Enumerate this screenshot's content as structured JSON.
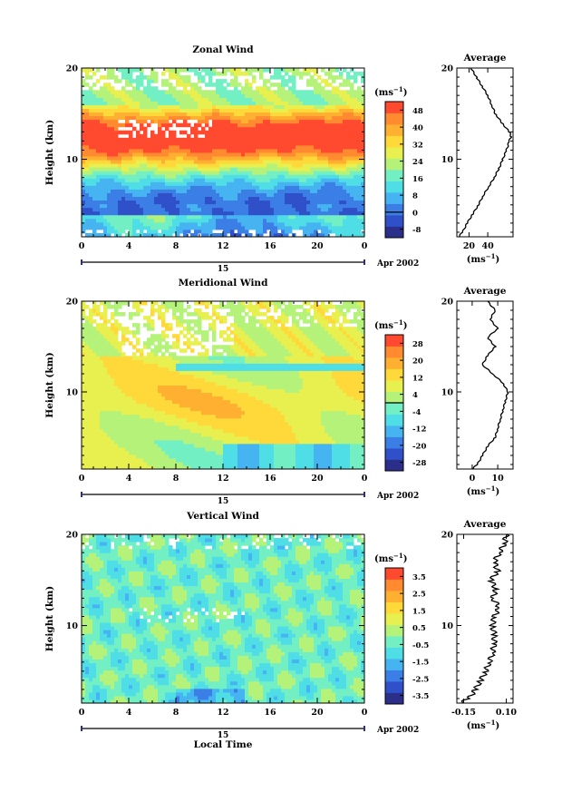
{
  "chart_data": [
    {
      "type": "heatmap",
      "title": "Zonal Wind",
      "ylabel": "Height (km)",
      "xlabel": "",
      "x_ticks": [
        "0",
        "4",
        "8",
        "12",
        "16",
        "20",
        "0"
      ],
      "y_ticks": [
        "10",
        "20"
      ],
      "xlim": [
        0,
        24
      ],
      "ylim": [
        1.5,
        20
      ],
      "date_day": "15",
      "date_month": "Apr 2002",
      "colorbar": {
        "unit": "(ms",
        "unit_exp": "−1",
        "unit_close": ")",
        "ticks": [
          "48",
          "40",
          "32",
          "24",
          "16",
          "8",
          "0",
          "-8"
        ],
        "range": [
          -12,
          52
        ],
        "zero_line": 0
      },
      "profile": {
        "title": "Average",
        "xlabel": "(ms",
        "xlabel_exp": "−1",
        "xlabel_close": ")",
        "x_ticks": [
          "20",
          "40"
        ],
        "y_ticks": [
          "10",
          "20"
        ],
        "xlim": [
          7,
          67
        ],
        "height": [
          1.5,
          2,
          3,
          4,
          5,
          6,
          7,
          8,
          9,
          10,
          11,
          12,
          12.5,
          13,
          14,
          15,
          16,
          17,
          18,
          19,
          20
        ],
        "value": [
          9,
          13,
          18,
          24,
          30,
          35,
          41,
          47,
          52,
          56,
          60,
          63,
          65,
          63,
          55,
          48,
          44,
          40,
          34,
          28,
          22
        ]
      }
    },
    {
      "type": "heatmap",
      "title": "Meridional Wind",
      "ylabel": "Height (km)",
      "xlabel": "",
      "x_ticks": [
        "0",
        "4",
        "8",
        "12",
        "16",
        "20",
        "0"
      ],
      "y_ticks": [
        "10",
        "20"
      ],
      "xlim": [
        0,
        24
      ],
      "ylim": [
        1.5,
        20
      ],
      "date_day": "15",
      "date_month": "Apr 2002",
      "colorbar": {
        "unit": "(ms",
        "unit_exp": "−1",
        "unit_close": ")",
        "ticks": [
          "28",
          "20",
          "12",
          "4",
          "-4",
          "-12",
          "-20",
          "-28"
        ],
        "range": [
          -32,
          32
        ],
        "zero_line": 0
      },
      "profile": {
        "title": "Average",
        "xlabel": "(ms",
        "xlabel_exp": "−1",
        "xlabel_close": ")",
        "x_ticks": [
          "0",
          "10"
        ],
        "y_ticks": [
          "10",
          "20"
        ],
        "xlim": [
          -6,
          16
        ],
        "height": [
          1.5,
          2,
          3,
          4,
          5,
          6,
          7,
          8,
          9,
          10,
          11,
          12,
          13,
          14,
          15,
          16,
          17,
          18,
          19,
          20
        ],
        "value": [
          0,
          2,
          4,
          6,
          9,
          10,
          11,
          12,
          13,
          14,
          12,
          8,
          4,
          6,
          9,
          6,
          10,
          7,
          9,
          6
        ]
      }
    },
    {
      "type": "heatmap",
      "title": "Vertical Wind",
      "ylabel": "Height (km)",
      "xlabel": "Local Time",
      "x_ticks": [
        "0",
        "4",
        "8",
        "12",
        "16",
        "20",
        "0"
      ],
      "y_ticks": [
        "10",
        "20"
      ],
      "xlim": [
        0,
        24
      ],
      "ylim": [
        1.5,
        20
      ],
      "date_day": "15",
      "date_month": "Apr 2002",
      "colorbar": {
        "unit": "(ms",
        "unit_exp": "−1",
        "unit_close": ")",
        "ticks": [
          "3.5",
          "2.5",
          "1.5",
          "0.5",
          "-0.5",
          "-1.5",
          "-2.5",
          "-3.5"
        ],
        "range": [
          -4,
          4
        ],
        "zero_line": null
      },
      "profile": {
        "title": "Average",
        "xlabel": "(ms",
        "xlabel_exp": "−1",
        "xlabel_close": ")",
        "x_ticks": [
          "-0.15",
          "0.10"
        ],
        "y_ticks": [
          "10",
          "20"
        ],
        "xlim": [
          -0.19,
          0.14
        ],
        "height": [
          1.5,
          2,
          3,
          4,
          5,
          6,
          7,
          8,
          9,
          10,
          11,
          12,
          13,
          14,
          15,
          16,
          17,
          18,
          19,
          20
        ],
        "value": [
          -0.17,
          -0.12,
          -0.08,
          -0.05,
          -0.02,
          0.0,
          0.02,
          0.03,
          0.03,
          0.02,
          0.03,
          0.06,
          0.02,
          0.04,
          0.01,
          0.05,
          0.03,
          0.06,
          0.09,
          0.1
        ]
      }
    }
  ]
}
